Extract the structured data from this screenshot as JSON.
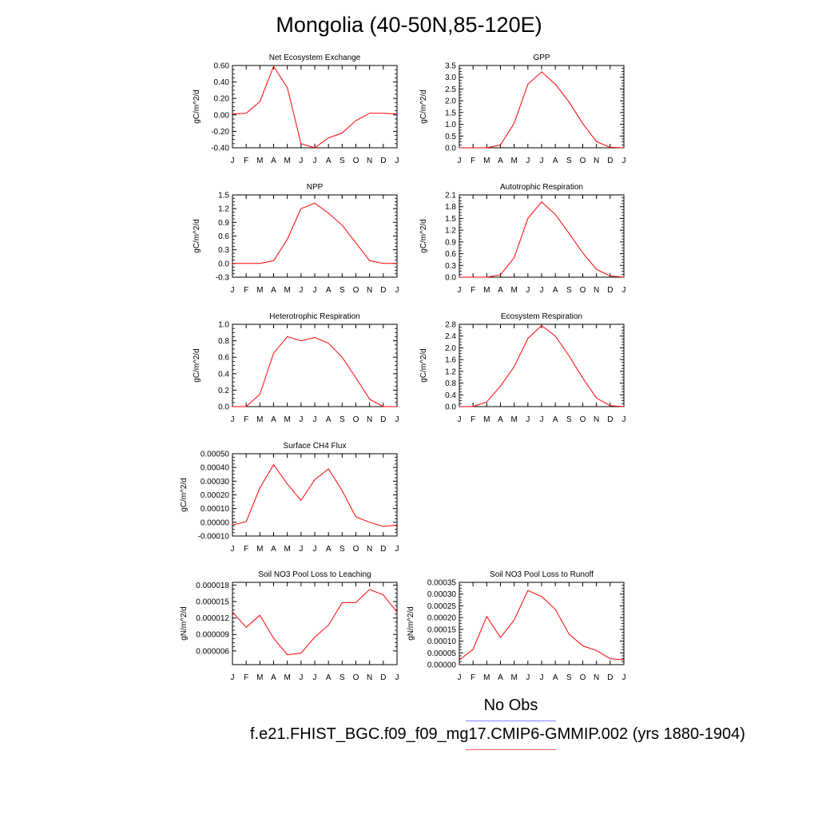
{
  "title": "Mongolia (40-50N,85-120E)",
  "colors": {
    "model_line": "#ff0000",
    "obs_legend_line": "#8080ff",
    "model_legend_line": "#ff6060"
  },
  "legend": {
    "obs_label": "No Obs",
    "case_label": "f.e21.FHIST_BGC.f09_f09_mg17.CMIP6-GMMIP.002 (yrs 1880-1904)"
  },
  "chart_data": [
    {
      "type": "line",
      "title": "Net Ecosystem Exchange",
      "ylabel": "gC/m^2/d",
      "x": [
        "J",
        "F",
        "M",
        "A",
        "M",
        "J",
        "J",
        "A",
        "S",
        "O",
        "N",
        "D",
        "J"
      ],
      "ylim": [
        -0.4,
        0.6
      ],
      "yticks": [
        -0.4,
        -0.2,
        0.0,
        0.2,
        0.4,
        0.6
      ],
      "ytick_labels": [
        "-0.40",
        "-0.20",
        "0.00",
        "0.20",
        "0.40",
        "0.60"
      ],
      "series": [
        {
          "values": [
            0.01,
            0.02,
            0.16,
            0.59,
            0.33,
            -0.35,
            -0.4,
            -0.28,
            -0.22,
            -0.07,
            0.02,
            0.02,
            0.01
          ]
        }
      ]
    },
    {
      "type": "line",
      "title": "GPP",
      "ylabel": "gC/m^2/d",
      "x": [
        "J",
        "F",
        "M",
        "A",
        "M",
        "J",
        "J",
        "A",
        "S",
        "O",
        "N",
        "D",
        "J"
      ],
      "ylim": [
        0,
        3.5
      ],
      "yticks": [
        0,
        0.5,
        1.0,
        1.5,
        2.0,
        2.5,
        3.0,
        3.5
      ],
      "ytick_labels": [
        "0.0",
        "0.5",
        "1.0",
        "1.5",
        "2.0",
        "2.5",
        "3.0",
        "3.5"
      ],
      "series": [
        {
          "values": [
            0.0,
            0.0,
            0.0,
            0.12,
            1.05,
            2.7,
            3.23,
            2.7,
            1.95,
            1.03,
            0.26,
            0.02,
            0.0
          ]
        }
      ]
    },
    {
      "type": "line",
      "title": "NPP",
      "ylabel": "gC/m^2/d",
      "x": [
        "J",
        "F",
        "M",
        "A",
        "M",
        "J",
        "J",
        "A",
        "S",
        "O",
        "N",
        "D",
        "J"
      ],
      "ylim": [
        -0.3,
        1.5
      ],
      "yticks": [
        -0.3,
        0.0,
        0.3,
        0.6,
        0.9,
        1.2,
        1.5
      ],
      "ytick_labels": [
        "-0.3",
        "0.0",
        "0.3",
        "0.6",
        "0.9",
        "1.2",
        "1.5"
      ],
      "series": [
        {
          "values": [
            0.0,
            0.0,
            0.0,
            0.06,
            0.53,
            1.2,
            1.32,
            1.1,
            0.84,
            0.45,
            0.06,
            0.0,
            0.0
          ]
        }
      ]
    },
    {
      "type": "line",
      "title": "Autotrophic Respiration",
      "ylabel": "gC/m^2/d",
      "x": [
        "J",
        "F",
        "M",
        "A",
        "M",
        "J",
        "J",
        "A",
        "S",
        "O",
        "N",
        "D",
        "J"
      ],
      "ylim": [
        0,
        2.1
      ],
      "yticks": [
        0,
        0.3,
        0.6,
        0.9,
        1.2,
        1.5,
        1.8,
        2.1
      ],
      "ytick_labels": [
        "0.0",
        "0.3",
        "0.6",
        "0.9",
        "1.2",
        "1.5",
        "1.8",
        "2.1"
      ],
      "series": [
        {
          "values": [
            0.0,
            0.0,
            0.0,
            0.06,
            0.5,
            1.5,
            1.92,
            1.6,
            1.12,
            0.62,
            0.2,
            0.03,
            0.0
          ]
        }
      ]
    },
    {
      "type": "line",
      "title": "Heterotrophic Respiration",
      "ylabel": "gC/m^2/d",
      "x": [
        "J",
        "F",
        "M",
        "A",
        "M",
        "J",
        "J",
        "A",
        "S",
        "O",
        "N",
        "D",
        "J"
      ],
      "ylim": [
        0,
        1.0
      ],
      "yticks": [
        0,
        0.2,
        0.4,
        0.6,
        0.8,
        1.0
      ],
      "ytick_labels": [
        "0.0",
        "0.2",
        "0.4",
        "0.6",
        "0.8",
        "1.0"
      ],
      "series": [
        {
          "values": [
            0.0,
            0.0,
            0.15,
            0.65,
            0.85,
            0.8,
            0.84,
            0.77,
            0.6,
            0.35,
            0.09,
            0.0,
            0.0
          ]
        }
      ]
    },
    {
      "type": "line",
      "title": "Ecosystem Respiration",
      "ylabel": "gC/m^2/d",
      "x": [
        "J",
        "F",
        "M",
        "A",
        "M",
        "J",
        "J",
        "A",
        "S",
        "O",
        "N",
        "D",
        "J"
      ],
      "ylim": [
        0,
        2.8
      ],
      "yticks": [
        0,
        0.4,
        0.8,
        1.2,
        1.6,
        2.0,
        2.4,
        2.8
      ],
      "ytick_labels": [
        "0.0",
        "0.4",
        "0.8",
        "1.2",
        "1.6",
        "2.0",
        "2.4",
        "2.8"
      ],
      "series": [
        {
          "values": [
            0.0,
            0.0,
            0.16,
            0.7,
            1.36,
            2.32,
            2.76,
            2.4,
            1.73,
            0.97,
            0.29,
            0.03,
            0.0
          ]
        }
      ]
    },
    {
      "type": "line",
      "title": "Surface CH4 Flux",
      "ylabel": "gC/m^2/d",
      "x": [
        "J",
        "F",
        "M",
        "A",
        "M",
        "J",
        "J",
        "A",
        "S",
        "O",
        "N",
        "D",
        "J"
      ],
      "ylim": [
        -0.0001,
        0.0005
      ],
      "yticks": [
        -0.0001,
        0.0,
        0.0001,
        0.0002,
        0.0003,
        0.0004,
        0.0005
      ],
      "ytick_labels": [
        "-0.00010",
        "0.00000",
        "0.00010",
        "0.00020",
        "0.00030",
        "0.00040",
        "0.00050"
      ],
      "series": [
        {
          "values": [
            -2e-05,
            5e-06,
            0.00025,
            0.00042,
            0.00028,
            0.00016,
            0.00031,
            0.00039,
            0.00023,
            4e-05,
            0.0,
            -3e-05,
            -2e-05
          ]
        }
      ]
    },
    {
      "type": "line",
      "title": "Soil NO3 Pool Loss to Leaching",
      "ylabel": "gN/m^2/d",
      "x": [
        "J",
        "F",
        "M",
        "A",
        "M",
        "J",
        "J",
        "A",
        "S",
        "O",
        "N",
        "D",
        "J"
      ],
      "ylim": [
        3.5e-06,
        1.85e-05
      ],
      "yticks": [
        6e-06,
        9e-06,
        1.2e-05,
        1.5e-05,
        1.8e-05
      ],
      "ytick_labels": [
        "0.000006",
        "0.000009",
        "0.000012",
        "0.000015",
        "0.000018"
      ],
      "series": [
        {
          "values": [
            1.31e-05,
            1.03e-05,
            1.25e-05,
            8.3e-06,
            5.3e-06,
            5.6e-06,
            8.5e-06,
            1.07e-05,
            1.48e-05,
            1.48e-05,
            1.72e-05,
            1.62e-05,
            1.31e-05
          ]
        }
      ]
    },
    {
      "type": "line",
      "title": "Soil NO3 Pool Loss to Runoff",
      "ylabel": "gN/m^2/d",
      "x": [
        "J",
        "F",
        "M",
        "A",
        "M",
        "J",
        "J",
        "A",
        "S",
        "O",
        "N",
        "D",
        "J"
      ],
      "ylim": [
        0,
        0.00035
      ],
      "yticks": [
        0,
        5e-05,
        0.0001,
        0.00015,
        0.0002,
        0.00025,
        0.0003,
        0.00035
      ],
      "ytick_labels": [
        "0.00000",
        "0.00005",
        "0.00010",
        "0.00015",
        "0.00020",
        "0.00025",
        "0.00030",
        "0.00035"
      ],
      "series": [
        {
          "values": [
            2e-05,
            6.5e-05,
            0.000205,
            0.000115,
            0.00019,
            0.000315,
            0.00029,
            0.000235,
            0.00013,
            8e-05,
            6e-05,
            2.5e-05,
            2e-05
          ]
        }
      ]
    }
  ]
}
